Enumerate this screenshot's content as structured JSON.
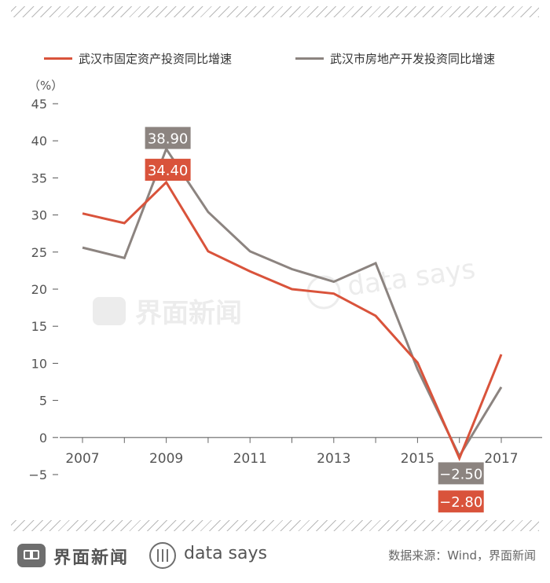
{
  "chart_data": {
    "type": "line",
    "unit_label": "（%）",
    "x": [
      2007,
      2008,
      2009,
      2010,
      2011,
      2012,
      2013,
      2014,
      2015,
      2016,
      2017
    ],
    "x_tick_labels": [
      "2007",
      "2009",
      "2011",
      "2013",
      "2015",
      "2017"
    ],
    "ylim": [
      -5,
      45
    ],
    "y_ticks": [
      -5,
      0,
      5,
      10,
      15,
      20,
      25,
      30,
      35,
      40,
      45
    ],
    "y_tick_labels": [
      "−5",
      "0",
      "5",
      "10",
      "15",
      "20",
      "25",
      "30",
      "35",
      "40",
      "45"
    ],
    "series": [
      {
        "name": "武汉市固定资产投资同比增速",
        "color": "#d9533b",
        "values": [
          30.2,
          28.9,
          34.4,
          25.1,
          22.4,
          20.0,
          19.4,
          16.4,
          10.1,
          -2.8,
          11.2
        ]
      },
      {
        "name": "武汉市房地产开发投资同比增速",
        "color": "#8c8480",
        "values": [
          25.6,
          24.2,
          38.9,
          30.4,
          25.1,
          22.7,
          21.0,
          23.5,
          9.2,
          -2.5,
          6.8
        ]
      }
    ],
    "annotations": [
      {
        "series": 1,
        "x": 2009,
        "text": "38.90",
        "color": "#8c8480"
      },
      {
        "series": 0,
        "x": 2009,
        "text": "34.40",
        "color": "#d9533b"
      },
      {
        "series": 1,
        "x": 2016,
        "text": "−2.50",
        "color": "#8c8480"
      },
      {
        "series": 0,
        "x": 2016,
        "text": "−2.80",
        "color": "#d9533b"
      }
    ],
    "watermark_text": "界面新闻",
    "watermark_text_2": "data says"
  },
  "footer": {
    "brand": "界面新闻",
    "datasays": "data says",
    "source": "数据来源：Wind，界面新闻"
  }
}
